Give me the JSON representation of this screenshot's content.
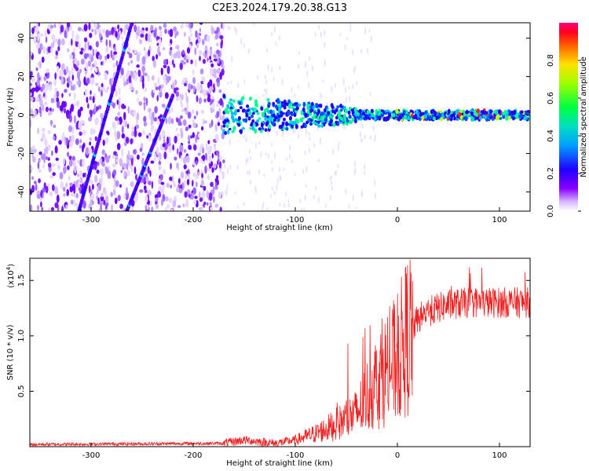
{
  "title": "C2E3.2024.179.20.38.G13",
  "chart_data": [
    {
      "type": "heatmap",
      "xlabel": "Height of straight line (km)",
      "ylabel": "Frequency (Hz)",
      "xlim": [
        -360,
        130
      ],
      "ylim": [
        -50,
        48
      ],
      "x_ticks": [
        -300,
        -200,
        -100,
        0,
        100
      ],
      "y_ticks": [
        -40,
        -20,
        0,
        20,
        40
      ],
      "colorbar": {
        "label": "Normalized spectral amplitude",
        "range": [
          0.0,
          1.0
        ],
        "ticks": [
          "0.0",
          "0.2",
          "0.4",
          "0.6",
          "0.8"
        ],
        "colors": [
          "#ffffff",
          "#c8a0ff",
          "#7a00ff",
          "#0000ff",
          "#00c8ff",
          "#00ff80",
          "#c8ff00",
          "#ffc000",
          "#ff0000",
          "#ff0080"
        ]
      },
      "features": [
        {
          "name": "",
          "type": "diagonal streak",
          "from": [
            -312,
            -50
          ],
          "to": [
            -260,
            48
          ]
        },
        {
          "name": "",
          "type": "diagonal streak",
          "from": [
            -265,
            -50
          ],
          "to": [
            -220,
            10
          ]
        },
        {
          "name": "",
          "type": "scattered background",
          "x_range": [
            -360,
            -170
          ],
          "y_range": [
            -50,
            48
          ]
        },
        {
          "name": "",
          "type": "band",
          "center_hz": 0,
          "x_range": [
            -170,
            130
          ]
        }
      ]
    },
    {
      "type": "line",
      "xlabel": "Height of straight line (km)",
      "ylabel": "SNR (10 * v/v)",
      "y_multiplier": "(x10",
      "y_multiplier_exp": "4",
      "xlim": [
        -360,
        130
      ],
      "ylim": [
        0,
        1.7
      ],
      "x_ticks": [
        -300,
        -200,
        -100,
        0,
        100
      ],
      "y_ticks": [
        "0.5",
        "1.0",
        "1.5"
      ],
      "color": "#ee2222",
      "trend": [
        [
          -360,
          0.02
        ],
        [
          -170,
          0.03
        ],
        [
          -150,
          0.06
        ],
        [
          -120,
          0.03
        ],
        [
          -100,
          0.06
        ],
        [
          -80,
          0.12
        ],
        [
          -60,
          0.2
        ],
        [
          -40,
          0.3
        ],
        [
          -20,
          0.6
        ],
        [
          0,
          0.8
        ],
        [
          10,
          1.0
        ],
        [
          20,
          1.15
        ],
        [
          30,
          1.22
        ],
        [
          50,
          1.28
        ],
        [
          70,
          1.3
        ],
        [
          100,
          1.3
        ],
        [
          130,
          1.3
        ]
      ]
    }
  ]
}
